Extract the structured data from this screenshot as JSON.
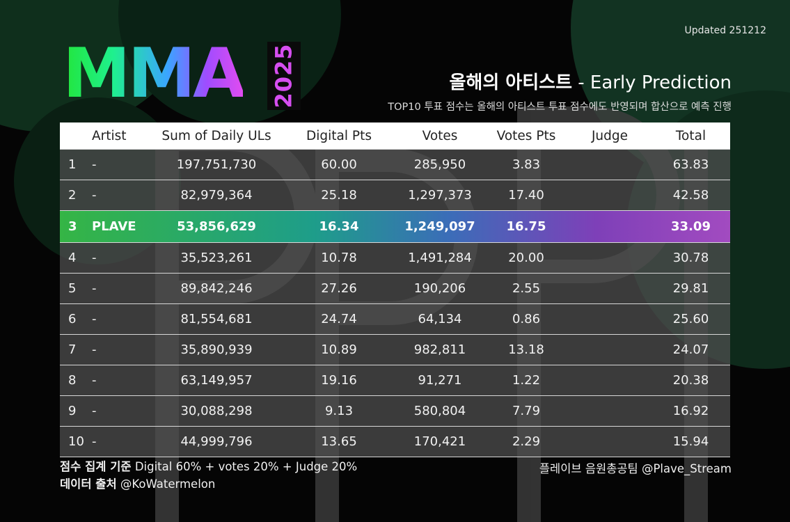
{
  "updated": "Updated 251212",
  "logo": {
    "text": "MMA",
    "year": "2025"
  },
  "title": {
    "bold": "올해의 아티스트",
    "rest": " - Early Prediction"
  },
  "subtitle": "TOP10 투표 점수는 올해의 아티스트 투표 점수에도 반영되며 합산으로 예측 진행",
  "table": {
    "headers": [
      "",
      "Artist",
      "Sum of Daily ULs",
      "Digital Pts",
      "Votes",
      "Votes Pts",
      "Judge",
      "Total"
    ],
    "rows": [
      {
        "rank": "1",
        "artist": "-",
        "ul": "197,751,730",
        "dp": "60.00",
        "votes": "285,950",
        "vp": "3.83",
        "judge": "",
        "total": "63.83"
      },
      {
        "rank": "2",
        "artist": "-",
        "ul": "82,979,364",
        "dp": "25.18",
        "votes": "1,297,373",
        "vp": "17.40",
        "judge": "",
        "total": "42.58"
      },
      {
        "rank": "3",
        "artist": "PLAVE",
        "ul": "53,856,629",
        "dp": "16.34",
        "votes": "1,249,097",
        "vp": "16.75",
        "judge": "",
        "total": "33.09"
      },
      {
        "rank": "4",
        "artist": "-",
        "ul": "35,523,261",
        "dp": "10.78",
        "votes": "1,491,284",
        "vp": "20.00",
        "judge": "",
        "total": "30.78"
      },
      {
        "rank": "5",
        "artist": "-",
        "ul": "89,842,246",
        "dp": "27.26",
        "votes": "190,206",
        "vp": "2.55",
        "judge": "",
        "total": "29.81"
      },
      {
        "rank": "6",
        "artist": "-",
        "ul": "81,554,681",
        "dp": "24.74",
        "votes": "64,134",
        "vp": "0.86",
        "judge": "",
        "total": "25.60"
      },
      {
        "rank": "7",
        "artist": "-",
        "ul": "35,890,939",
        "dp": "10.89",
        "votes": "982,811",
        "vp": "13.18",
        "judge": "",
        "total": "24.07"
      },
      {
        "rank": "8",
        "artist": "-",
        "ul": "63,149,957",
        "dp": "19.16",
        "votes": "91,271",
        "vp": "1.22",
        "judge": "",
        "total": "20.38"
      },
      {
        "rank": "9",
        "artist": "-",
        "ul": "30,088,298",
        "dp": "9.13",
        "votes": "580,804",
        "vp": "7.79",
        "judge": "",
        "total": "16.92"
      },
      {
        "rank": "10",
        "artist": "-",
        "ul": "44,999,796",
        "dp": "13.65",
        "votes": "170,421",
        "vp": "2.29",
        "judge": "",
        "total": "15.94"
      }
    ]
  },
  "footer": {
    "criteria_label": "점수 집계 기준",
    "criteria_value": " Digital 60% + votes 20% + Judge 20%",
    "source_label": "데이터 출처",
    "source_value": " @KoWatermelon",
    "credit": "플레이브 음원총공팀 @Plave_Stream"
  },
  "colors": {
    "accent_green": "#22e53a",
    "accent_purple": "#d64ef0",
    "background": "#050505"
  },
  "watermark": "PLAVE logo (background)"
}
